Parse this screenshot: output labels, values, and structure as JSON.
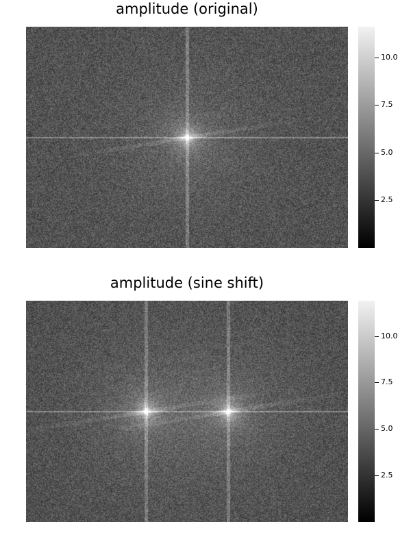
{
  "chart_data": [
    {
      "type": "heatmap",
      "title": "amplitude (original)",
      "colormap": "grayscale (black to white)",
      "colorbar_range": [
        0,
        11.6
      ],
      "colorbar_ticks": [
        "2.5",
        "5.0",
        "7.5",
        "10.0"
      ],
      "colorbar_tick_values": [
        2.5,
        5.0,
        7.5,
        10.0
      ],
      "grid": false,
      "spectrum_peaks": [
        {
          "u": 0.5,
          "v": 0.5,
          "value": 11.6
        }
      ],
      "background_level": 4.0
    },
    {
      "type": "heatmap",
      "title": "amplitude (sine shift)",
      "colormap": "grayscale (black to white)",
      "colorbar_range": [
        0,
        11.9
      ],
      "colorbar_ticks": [
        "2.5",
        "5.0",
        "7.5",
        "10.0"
      ],
      "colorbar_tick_values": [
        2.5,
        5.0,
        7.5,
        10.0
      ],
      "grid": false,
      "spectrum_peaks": [
        {
          "u": 0.373,
          "v": 0.5,
          "value": 11.0
        },
        {
          "u": 0.628,
          "v": 0.5,
          "value": 11.0
        }
      ],
      "background_level": 4.0
    }
  ]
}
